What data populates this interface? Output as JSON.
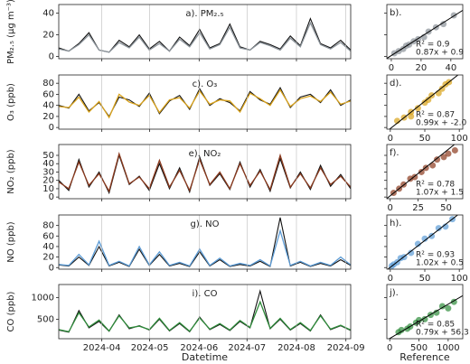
{
  "chart_data": [
    {
      "type": "line",
      "label": "a). PM₂.₅",
      "ylabel": "PM₂.₅ (µg m⁻³)",
      "ylim": [
        -2,
        48
      ],
      "yticks": [
        0,
        20,
        40
      ],
      "xlim": [
        0,
        183
      ],
      "xticks": [
        27,
        57,
        88,
        118,
        149,
        180
      ],
      "grid": true,
      "series": [
        {
          "color": "#111111",
          "values": [
            8,
            5,
            12,
            22,
            6,
            4,
            15,
            9,
            20,
            7,
            14,
            5,
            18,
            10,
            25,
            8,
            12,
            30,
            9,
            6,
            14,
            11,
            7,
            19,
            10,
            35,
            12,
            8,
            15,
            6
          ]
        },
        {
          "color": "#8a9299",
          "values": [
            7,
            5,
            11,
            20,
            6,
            4,
            13,
            8,
            18,
            6,
            12,
            5,
            16,
            9,
            22,
            7,
            11,
            27,
            8,
            6,
            13,
            10,
            6,
            17,
            9,
            31,
            11,
            7,
            13,
            5
          ]
        }
      ]
    },
    {
      "type": "scatter",
      "label": "b).",
      "color": "#8a9299",
      "xlim": [
        -3,
        48
      ],
      "ylim": [
        -2,
        48
      ],
      "xticks": [
        0,
        20,
        40
      ],
      "yticks": [
        0,
        20,
        40
      ],
      "x": [
        2,
        5,
        8,
        10,
        12,
        15,
        18,
        22,
        25,
        30,
        35,
        42
      ],
      "values": [
        3,
        5,
        7,
        10,
        11,
        14,
        16,
        18,
        23,
        27,
        30,
        38
      ],
      "fit": {
        "slope": 0.87,
        "intercept": 0.9
      },
      "annotations": [
        "R² = 0.9",
        "0.87x + 0.9"
      ]
    },
    {
      "type": "line",
      "label": "c). O₃",
      "ylabel": "O₃ (ppb)",
      "ylim": [
        -3,
        95
      ],
      "yticks": [
        0,
        20,
        40,
        60,
        80
      ],
      "xlim": [
        0,
        183
      ],
      "xticks": [
        27,
        57,
        88,
        118,
        149,
        180
      ],
      "grid": true,
      "series": [
        {
          "color": "#111111",
          "values": [
            40,
            35,
            60,
            30,
            45,
            20,
            55,
            50,
            38,
            62,
            25,
            48,
            58,
            33,
            70,
            40,
            52,
            45,
            30,
            65,
            50,
            42,
            72,
            36,
            55,
            60,
            45,
            68,
            40,
            50
          ]
        },
        {
          "color": "#d9a21a",
          "values": [
            38,
            36,
            55,
            28,
            47,
            18,
            60,
            46,
            40,
            58,
            27,
            50,
            54,
            35,
            66,
            42,
            50,
            48,
            28,
            62,
            52,
            40,
            68,
            38,
            52,
            57,
            47,
            64,
            42,
            48
          ]
        }
      ]
    },
    {
      "type": "scatter",
      "label": "d).",
      "color": "#d9a21a",
      "xlim": [
        -5,
        105
      ],
      "ylim": [
        -3,
        95
      ],
      "xticks": [
        0,
        50,
        100
      ],
      "yticks": [
        0,
        20,
        40,
        60,
        80
      ],
      "x": [
        10,
        20,
        30,
        40,
        50,
        55,
        60,
        70,
        75,
        80,
        85,
        30
      ],
      "values": [
        12,
        18,
        28,
        35,
        45,
        50,
        58,
        62,
        70,
        78,
        82,
        20
      ],
      "fit": {
        "slope": 0.99,
        "intercept": -2.0
      },
      "annotations": [
        "R² = 0.87",
        "0.99x + -2.0"
      ]
    },
    {
      "type": "line",
      "label": "e). NO₂",
      "ylabel": "NO₂ (ppb)",
      "ylim": [
        -2,
        63
      ],
      "yticks": [
        0,
        10,
        20,
        30,
        40,
        50
      ],
      "xlim": [
        0,
        183
      ],
      "xticks": [
        27,
        57,
        88,
        118,
        149,
        180
      ],
      "grid": true,
      "series": [
        {
          "color": "#111111",
          "values": [
            20,
            8,
            45,
            12,
            30,
            5,
            50,
            15,
            25,
            8,
            40,
            10,
            35,
            6,
            48,
            14,
            28,
            9,
            42,
            12,
            33,
            7,
            46,
            11,
            30,
            9,
            38,
            13,
            27,
            10
          ]
        },
        {
          "color": "#8b3a1e",
          "values": [
            18,
            10,
            42,
            14,
            28,
            7,
            52,
            16,
            24,
            10,
            44,
            12,
            32,
            8,
            45,
            15,
            30,
            10,
            40,
            14,
            31,
            9,
            50,
            12,
            28,
            11,
            35,
            15,
            25,
            12
          ]
        }
      ]
    },
    {
      "type": "scatter",
      "label": "f).",
      "color": "#8b3a1e",
      "xlim": [
        -3,
        65
      ],
      "ylim": [
        -2,
        63
      ],
      "xticks": [
        0,
        25,
        50
      ],
      "yticks": [
        0,
        10,
        20,
        30,
        40,
        50
      ],
      "x": [
        3,
        8,
        12,
        18,
        22,
        28,
        32,
        38,
        42,
        48,
        52,
        58
      ],
      "values": [
        5,
        10,
        15,
        22,
        24,
        30,
        35,
        38,
        45,
        48,
        52,
        56
      ],
      "fit": {
        "slope": 1.07,
        "intercept": 1.5
      },
      "annotations": [
        "R² = 0.78",
        "1.07x + 1.5"
      ]
    },
    {
      "type": "line",
      "label": "g). NO",
      "ylabel": "NO (ppb)",
      "ylim": [
        -3,
        100
      ],
      "yticks": [
        0,
        20,
        40,
        60,
        80
      ],
      "xlim": [
        0,
        183
      ],
      "xticks": [
        27,
        57,
        88,
        118,
        149,
        180
      ],
      "grid": true,
      "series": [
        {
          "color": "#111111",
          "values": [
            5,
            3,
            20,
            4,
            40,
            3,
            10,
            2,
            35,
            4,
            25,
            3,
            8,
            2,
            30,
            3,
            15,
            2,
            6,
            3,
            12,
            2,
            95,
            3,
            10,
            2,
            8,
            3,
            15,
            4
          ]
        },
        {
          "color": "#5b9bd5",
          "values": [
            6,
            4,
            25,
            5,
            50,
            4,
            12,
            3,
            40,
            5,
            30,
            4,
            10,
            3,
            35,
            4,
            18,
            3,
            8,
            4,
            15,
            3,
            70,
            4,
            12,
            3,
            10,
            4,
            20,
            5
          ]
        }
      ]
    },
    {
      "type": "scatter",
      "label": "h).",
      "color": "#5b9bd5",
      "xlim": [
        -5,
        105
      ],
      "ylim": [
        -3,
        100
      ],
      "xticks": [
        0,
        50,
        100
      ],
      "yticks": [
        0,
        20,
        40,
        60,
        80
      ],
      "x": [
        2,
        5,
        10,
        15,
        20,
        30,
        40,
        50,
        60,
        70,
        80,
        90
      ],
      "values": [
        3,
        6,
        10,
        18,
        20,
        28,
        45,
        55,
        60,
        75,
        78,
        92
      ],
      "fit": {
        "slope": 1.02,
        "intercept": 0.5
      },
      "annotations": [
        "R² = 0.93",
        "1.02x + 0.5"
      ]
    },
    {
      "type": "line",
      "label": "i). CO",
      "ylabel": "CO (ppb)",
      "xlabel": "Datetime",
      "ylim": [
        50,
        1300
      ],
      "yticks": [
        500,
        1000
      ],
      "xlim": [
        0,
        183
      ],
      "xticks": [
        {
          "value": 27,
          "label": "2024-04"
        },
        {
          "value": 57,
          "label": "2024-05"
        },
        {
          "value": 88,
          "label": "2024-06"
        },
        {
          "value": 118,
          "label": "2024-07"
        },
        {
          "value": 149,
          "label": "2024-08"
        },
        {
          "value": 180,
          "label": "2024-09"
        }
      ],
      "grid": true,
      "series": [
        {
          "color": "#111111",
          "values": [
            250,
            200,
            700,
            300,
            450,
            220,
            600,
            280,
            350,
            250,
            500,
            230,
            400,
            210,
            550,
            260,
            380,
            240,
            450,
            300,
            1150,
            280,
            500,
            250,
            400,
            230,
            600,
            260,
            350,
            240
          ]
        },
        {
          "color": "#2e8b3a",
          "values": [
            260,
            210,
            650,
            320,
            480,
            230,
            580,
            300,
            340,
            260,
            520,
            240,
            420,
            220,
            530,
            270,
            400,
            250,
            470,
            310,
            900,
            290,
            520,
            260,
            420,
            240,
            580,
            270,
            360,
            250
          ]
        }
      ]
    },
    {
      "type": "scatter",
      "label": "j).",
      "xlabel": "Reference",
      "color": "#2e8b3a",
      "xlim": [
        -50,
        1250
      ],
      "ylim": [
        50,
        1300
      ],
      "xticks": [
        0,
        500,
        1000
      ],
      "yticks": [
        500,
        1000
      ],
      "x": [
        150,
        200,
        300,
        350,
        450,
        500,
        600,
        700,
        800,
        900,
        1000,
        1100
      ],
      "values": [
        200,
        250,
        280,
        330,
        420,
        480,
        500,
        600,
        650,
        800,
        750,
        900
      ],
      "fit": {
        "slope": 0.79,
        "intercept": 56.3
      },
      "annotations": [
        "R² = 0.85",
        "0.79x + 56.3"
      ]
    }
  ]
}
